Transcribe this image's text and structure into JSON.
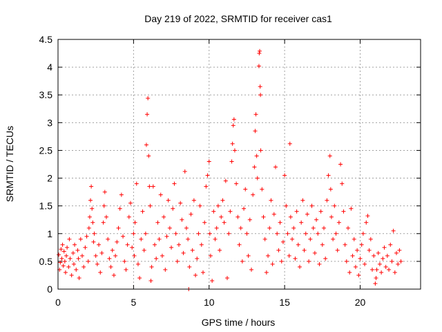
{
  "chart_data": {
    "type": "scatter",
    "title": "Day 219 of 2022, SRMTID for receiver cas1",
    "xlabel": "GPS time / hours",
    "ylabel": "SRMTID / TECUs",
    "xlim": [
      0,
      24
    ],
    "ylim": [
      0,
      4.5
    ],
    "xticks": [
      0,
      5,
      10,
      15,
      20
    ],
    "xtick_labels": [
      "0",
      "5",
      "10",
      "15",
      "20"
    ],
    "yticks": [
      0,
      0.5,
      1,
      1.5,
      2,
      2.5,
      3,
      3.5,
      4,
      4.5
    ],
    "ytick_labels": [
      "0",
      "0.5",
      "1",
      "1.5",
      "2",
      "2.5",
      "3",
      "3.5",
      "4",
      "4.5"
    ],
    "grid": true,
    "marker": "+",
    "series": [
      {
        "name": "SRMTID",
        "color": "#ff0000",
        "points": [
          [
            0.05,
            0.62
          ],
          [
            0.1,
            0.35
          ],
          [
            0.15,
            0.48
          ],
          [
            0.2,
            0.72
          ],
          [
            0.25,
            0.55
          ],
          [
            0.3,
            0.8
          ],
          [
            0.35,
            0.42
          ],
          [
            0.4,
            0.68
          ],
          [
            0.45,
            0.5
          ],
          [
            0.5,
            0.3
          ],
          [
            0.55,
            0.6
          ],
          [
            0.6,
            0.75
          ],
          [
            0.7,
            0.4
          ],
          [
            0.75,
            0.9
          ],
          [
            0.8,
            0.55
          ],
          [
            0.9,
            0.25
          ],
          [
            1.0,
            0.65
          ],
          [
            1.05,
            0.45
          ],
          [
            1.1,
            0.8
          ],
          [
            1.2,
            0.35
          ],
          [
            1.3,
            0.7
          ],
          [
            1.35,
            0.55
          ],
          [
            1.4,
            0.2
          ],
          [
            1.5,
            0.9
          ],
          [
            1.6,
            0.6
          ],
          [
            1.7,
            0.4
          ],
          [
            1.8,
            0.75
          ],
          [
            1.9,
            0.95
          ],
          [
            2.0,
            0.5
          ],
          [
            2.05,
            1.1
          ],
          [
            2.1,
            1.3
          ],
          [
            2.15,
            1.6
          ],
          [
            2.2,
            1.85
          ],
          [
            2.25,
            1.45
          ],
          [
            2.3,
            1.2
          ],
          [
            2.35,
            0.85
          ],
          [
            2.4,
            1.0
          ],
          [
            2.5,
            0.6
          ],
          [
            2.6,
            0.45
          ],
          [
            2.7,
            0.8
          ],
          [
            2.8,
            0.3
          ],
          [
            2.9,
            0.65
          ],
          [
            3.0,
            1.2
          ],
          [
            3.05,
            1.5
          ],
          [
            3.1,
            1.75
          ],
          [
            3.2,
            1.3
          ],
          [
            3.3,
            0.9
          ],
          [
            3.4,
            0.55
          ],
          [
            3.5,
            0.4
          ],
          [
            3.6,
            0.7
          ],
          [
            3.7,
            0.25
          ],
          [
            3.8,
            0.6
          ],
          [
            3.9,
            0.85
          ],
          [
            4.0,
            1.1
          ],
          [
            4.1,
            1.45
          ],
          [
            4.2,
            1.7
          ],
          [
            4.3,
            0.95
          ],
          [
            4.4,
            0.5
          ],
          [
            4.5,
            0.35
          ],
          [
            4.6,
            0.8
          ],
          [
            4.7,
            1.3
          ],
          [
            4.8,
            1.55
          ],
          [
            4.9,
            0.75
          ],
          [
            5.0,
            1.0
          ],
          [
            5.05,
            0.6
          ],
          [
            5.1,
            1.2
          ],
          [
            5.2,
            1.9
          ],
          [
            5.3,
            0.45
          ],
          [
            5.4,
            0.2
          ],
          [
            5.5,
            0.9
          ],
          [
            5.6,
            1.4
          ],
          [
            5.7,
            0.7
          ],
          [
            5.8,
            1.0
          ],
          [
            5.85,
            2.6
          ],
          [
            5.9,
            3.15
          ],
          [
            5.95,
            3.44
          ],
          [
            6.0,
            2.4
          ],
          [
            6.05,
            1.85
          ],
          [
            6.1,
            1.5
          ],
          [
            6.15,
            0.15
          ],
          [
            6.2,
            0.4
          ],
          [
            6.3,
            1.85
          ],
          [
            6.4,
            0.8
          ],
          [
            6.5,
            0.55
          ],
          [
            6.6,
            1.2
          ],
          [
            6.7,
            0.9
          ],
          [
            6.8,
            1.7
          ],
          [
            6.9,
            0.6
          ],
          [
            7.0,
            1.3
          ],
          [
            7.1,
            0.35
          ],
          [
            7.2,
            0.95
          ],
          [
            7.3,
            1.6
          ],
          [
            7.4,
            1.1
          ],
          [
            7.5,
            0.75
          ],
          [
            7.6,
            1.45
          ],
          [
            7.7,
            1.9
          ],
          [
            7.8,
            1.0
          ],
          [
            7.9,
            0.5
          ],
          [
            8.0,
            0.8
          ],
          [
            8.1,
            1.55
          ],
          [
            8.2,
            1.25
          ],
          [
            8.3,
            0.65
          ],
          [
            8.4,
            2.12
          ],
          [
            8.5,
            1.1
          ],
          [
            8.6,
            0.9
          ],
          [
            8.65,
            0.0
          ],
          [
            8.7,
            0.4
          ],
          [
            8.8,
            1.35
          ],
          [
            8.9,
            0.7
          ],
          [
            9.0,
            1.6
          ],
          [
            9.1,
            0.25
          ],
          [
            9.2,
            0.55
          ],
          [
            9.3,
            1.0
          ],
          [
            9.4,
            1.5
          ],
          [
            9.5,
            0.8
          ],
          [
            9.6,
            0.3
          ],
          [
            9.7,
            1.2
          ],
          [
            9.8,
            1.85
          ],
          [
            9.9,
            2.05
          ],
          [
            10.0,
            2.3
          ],
          [
            10.05,
            1.0
          ],
          [
            10.1,
            0.6
          ],
          [
            10.2,
            0.15
          ],
          [
            10.3,
            1.4
          ],
          [
            10.4,
            0.9
          ],
          [
            10.5,
            1.1
          ],
          [
            10.6,
            1.5
          ],
          [
            10.7,
            0.7
          ],
          [
            10.8,
            1.3
          ],
          [
            10.9,
            1.6
          ],
          [
            11.0,
            1.2
          ],
          [
            11.1,
            1.95
          ],
          [
            11.2,
            0.2
          ],
          [
            11.3,
            1.0
          ],
          [
            11.4,
            1.4
          ],
          [
            11.5,
            2.3
          ],
          [
            11.55,
            2.62
          ],
          [
            11.6,
            2.95
          ],
          [
            11.65,
            3.06
          ],
          [
            11.7,
            2.5
          ],
          [
            11.8,
            1.9
          ],
          [
            11.9,
            1.3
          ],
          [
            12.0,
            0.8
          ],
          [
            12.1,
            1.1
          ],
          [
            12.2,
            0.5
          ],
          [
            12.3,
            1.45
          ],
          [
            12.4,
            1.8
          ],
          [
            12.5,
            1.0
          ],
          [
            12.6,
            0.6
          ],
          [
            12.7,
            1.25
          ],
          [
            12.8,
            0.35
          ],
          [
            12.9,
            1.7
          ],
          [
            13.0,
            2.2
          ],
          [
            13.05,
            2.85
          ],
          [
            13.1,
            3.15
          ],
          [
            13.15,
            2.4
          ],
          [
            13.2,
            2.0
          ],
          [
            13.3,
            4.02
          ],
          [
            13.32,
            4.25
          ],
          [
            13.35,
            4.29
          ],
          [
            13.38,
            3.65
          ],
          [
            13.4,
            3.5
          ],
          [
            13.42,
            2.5
          ],
          [
            13.5,
            1.8
          ],
          [
            13.6,
            1.3
          ],
          [
            13.7,
            0.9
          ],
          [
            13.8,
            0.3
          ],
          [
            13.9,
            0.6
          ],
          [
            14.0,
            1.1
          ],
          [
            14.1,
            1.6
          ],
          [
            14.2,
            0.45
          ],
          [
            14.3,
            1.35
          ],
          [
            14.4,
            2.2
          ],
          [
            14.5,
            1.0
          ],
          [
            14.6,
            0.7
          ],
          [
            14.7,
            1.2
          ],
          [
            14.8,
            0.5
          ],
          [
            14.9,
            0.85
          ],
          [
            15.0,
            2.05
          ],
          [
            15.1,
            1.5
          ],
          [
            15.2,
            1.0
          ],
          [
            15.3,
            0.6
          ],
          [
            15.35,
            2.62
          ],
          [
            15.4,
            1.3
          ],
          [
            15.5,
            0.9
          ],
          [
            15.6,
            1.1
          ],
          [
            15.7,
            0.55
          ],
          [
            15.8,
            1.4
          ],
          [
            15.9,
            0.8
          ],
          [
            16.0,
            0.4
          ],
          [
            16.1,
            1.2
          ],
          [
            16.2,
            1.6
          ],
          [
            16.3,
            0.7
          ],
          [
            16.4,
            1.0
          ],
          [
            16.5,
            1.35
          ],
          [
            16.6,
            0.5
          ],
          [
            16.7,
            0.9
          ],
          [
            16.8,
            1.5
          ],
          [
            16.9,
            1.1
          ],
          [
            17.0,
            0.65
          ],
          [
            17.1,
            1.25
          ],
          [
            17.2,
            1.0
          ],
          [
            17.3,
            0.45
          ],
          [
            17.4,
            1.4
          ],
          [
            17.5,
            0.8
          ],
          [
            17.6,
            1.1
          ],
          [
            17.7,
            0.55
          ],
          [
            17.8,
            1.6
          ],
          [
            17.9,
            2.05
          ],
          [
            18.0,
            2.4
          ],
          [
            18.05,
            1.8
          ],
          [
            18.1,
            1.3
          ],
          [
            18.2,
            0.9
          ],
          [
            18.3,
            1.5
          ],
          [
            18.4,
            1.0
          ],
          [
            18.5,
            0.7
          ],
          [
            18.6,
            1.2
          ],
          [
            18.7,
            2.25
          ],
          [
            18.8,
            1.9
          ],
          [
            18.9,
            1.4
          ],
          [
            19.0,
            0.8
          ],
          [
            19.1,
            0.5
          ],
          [
            19.2,
            1.1
          ],
          [
            19.3,
            0.3
          ],
          [
            19.4,
            1.45
          ],
          [
            19.5,
            0.6
          ],
          [
            19.6,
            0.9
          ],
          [
            19.7,
            0.4
          ],
          [
            19.8,
            0.7
          ],
          [
            19.9,
            0.25
          ],
          [
            20.0,
            0.55
          ],
          [
            20.1,
            0.8
          ],
          [
            20.2,
            1.0
          ],
          [
            20.3,
            0.45
          ],
          [
            20.4,
            1.2
          ],
          [
            20.5,
            1.32
          ],
          [
            20.6,
            0.7
          ],
          [
            20.7,
            0.9
          ],
          [
            20.8,
            0.35
          ],
          [
            20.9,
            0.6
          ],
          [
            21.0,
            0.1
          ],
          [
            21.05,
            0.2
          ],
          [
            21.1,
            0.35
          ],
          [
            21.2,
            0.65
          ],
          [
            21.3,
            0.45
          ],
          [
            21.4,
            0.3
          ],
          [
            21.5,
            0.55
          ],
          [
            21.6,
            0.75
          ],
          [
            21.7,
            0.4
          ],
          [
            21.8,
            0.6
          ],
          [
            21.9,
            0.35
          ],
          [
            22.0,
            0.8
          ],
          [
            22.1,
            0.5
          ],
          [
            22.2,
            1.05
          ],
          [
            22.3,
            0.3
          ],
          [
            22.4,
            0.65
          ],
          [
            22.5,
            0.45
          ],
          [
            22.6,
            0.7
          ],
          [
            22.7,
            0.5
          ]
        ]
      }
    ]
  }
}
